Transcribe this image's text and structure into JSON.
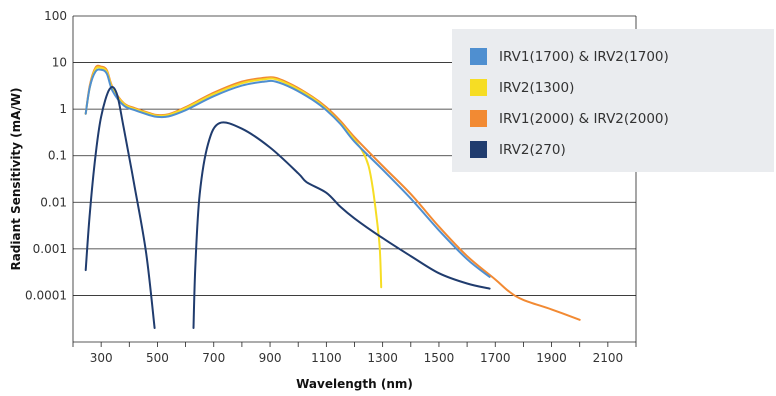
{
  "chart_data": {
    "type": "line",
    "xlabel": "Wavelength (nm)",
    "ylabel": "Radiant Sensitivity (mA/W)",
    "x_scale": "linear",
    "y_scale": "log",
    "xlim": [
      200,
      2200
    ],
    "ylim": [
      1e-05,
      100
    ],
    "x_ticks": [
      "300",
      "500",
      "700",
      "900",
      "1100",
      "1300",
      "1500",
      "1700",
      "1900",
      "2100"
    ],
    "y_ticks": [
      "100",
      "10",
      "1",
      "0.1",
      "0.01",
      "0.001",
      "0.0001"
    ],
    "grid": "horizontal",
    "legend_position": "top-right",
    "series": [
      {
        "name": "IRV1(1700) & IRV2(1700)",
        "color": "#4f8fd0",
        "points": [
          [
            245,
            0.8
          ],
          [
            260,
            3
          ],
          [
            280,
            6.4
          ],
          [
            300,
            7
          ],
          [
            320,
            5.8
          ],
          [
            340,
            2.5
          ],
          [
            380,
            1.2
          ],
          [
            420,
            0.95
          ],
          [
            470,
            0.75
          ],
          [
            500,
            0.68
          ],
          [
            540,
            0.7
          ],
          [
            600,
            0.95
          ],
          [
            700,
            1.9
          ],
          [
            800,
            3.2
          ],
          [
            880,
            3.9
          ],
          [
            920,
            3.9
          ],
          [
            980,
            2.8
          ],
          [
            1050,
            1.6
          ],
          [
            1100,
            0.95
          ],
          [
            1150,
            0.48
          ],
          [
            1200,
            0.2
          ],
          [
            1300,
            0.05
          ],
          [
            1400,
            0.012
          ],
          [
            1500,
            0.0025
          ],
          [
            1600,
            0.0006
          ],
          [
            1680,
            0.00025
          ]
        ]
      },
      {
        "name": "IRV2(1300)",
        "color": "#f6dd24",
        "points": [
          [
            245,
            0.8
          ],
          [
            260,
            3
          ],
          [
            280,
            7.2
          ],
          [
            300,
            7.7
          ],
          [
            320,
            6.4
          ],
          [
            340,
            2.8
          ],
          [
            380,
            1.3
          ],
          [
            420,
            1.0
          ],
          [
            470,
            0.8
          ],
          [
            500,
            0.72
          ],
          [
            540,
            0.75
          ],
          [
            600,
            1.05
          ],
          [
            700,
            2.1
          ],
          [
            800,
            3.6
          ],
          [
            880,
            4.4
          ],
          [
            920,
            4.4
          ],
          [
            980,
            3.1
          ],
          [
            1050,
            1.75
          ],
          [
            1100,
            1.0
          ],
          [
            1150,
            0.5
          ],
          [
            1200,
            0.22
          ],
          [
            1230,
            0.12
          ],
          [
            1250,
            0.06
          ],
          [
            1265,
            0.02
          ],
          [
            1280,
            0.004
          ],
          [
            1290,
            0.001
          ],
          [
            1295,
            0.00015
          ]
        ]
      },
      {
        "name": "IRV1(2000) & IRV2(2000)",
        "color": "#f28a33",
        "points": [
          [
            245,
            0.8
          ],
          [
            260,
            3.3
          ],
          [
            280,
            7.8
          ],
          [
            300,
            8.2
          ],
          [
            320,
            6.9
          ],
          [
            340,
            3
          ],
          [
            380,
            1.35
          ],
          [
            420,
            1.05
          ],
          [
            470,
            0.83
          ],
          [
            500,
            0.75
          ],
          [
            540,
            0.78
          ],
          [
            600,
            1.1
          ],
          [
            700,
            2.25
          ],
          [
            800,
            3.9
          ],
          [
            880,
            4.7
          ],
          [
            920,
            4.7
          ],
          [
            980,
            3.3
          ],
          [
            1050,
            1.85
          ],
          [
            1100,
            1.1
          ],
          [
            1150,
            0.56
          ],
          [
            1200,
            0.25
          ],
          [
            1300,
            0.06
          ],
          [
            1400,
            0.015
          ],
          [
            1500,
            0.003
          ],
          [
            1600,
            0.0007
          ],
          [
            1700,
            0.00022
          ],
          [
            1750,
            0.00012
          ],
          [
            1800,
            8e-05
          ],
          [
            1900,
            5e-05
          ],
          [
            2000,
            3e-05
          ]
        ]
      },
      {
        "name": "IRV2(270)",
        "color": "#203c6e",
        "points": [
          [
            245,
            0.00035
          ],
          [
            260,
            0.006
          ],
          [
            280,
            0.1
          ],
          [
            300,
            0.7
          ],
          [
            330,
            2.7
          ],
          [
            355,
            2.2
          ],
          [
            380,
            0.4
          ],
          [
            420,
            0.02
          ],
          [
            460,
            0.0008
          ],
          [
            490,
            2e-05
          ]
        ],
        "points2": [
          [
            628,
            2e-05
          ],
          [
            635,
            0.0005
          ],
          [
            650,
            0.015
          ],
          [
            680,
            0.18
          ],
          [
            720,
            0.5
          ],
          [
            800,
            0.38
          ],
          [
            900,
            0.15
          ],
          [
            1000,
            0.042
          ],
          [
            1030,
            0.027
          ],
          [
            1100,
            0.016
          ],
          [
            1150,
            0.008
          ],
          [
            1200,
            0.0045
          ],
          [
            1300,
            0.0017
          ],
          [
            1400,
            0.0007
          ],
          [
            1500,
            0.0003
          ],
          [
            1600,
            0.00018
          ],
          [
            1680,
            0.00014
          ]
        ]
      }
    ]
  }
}
